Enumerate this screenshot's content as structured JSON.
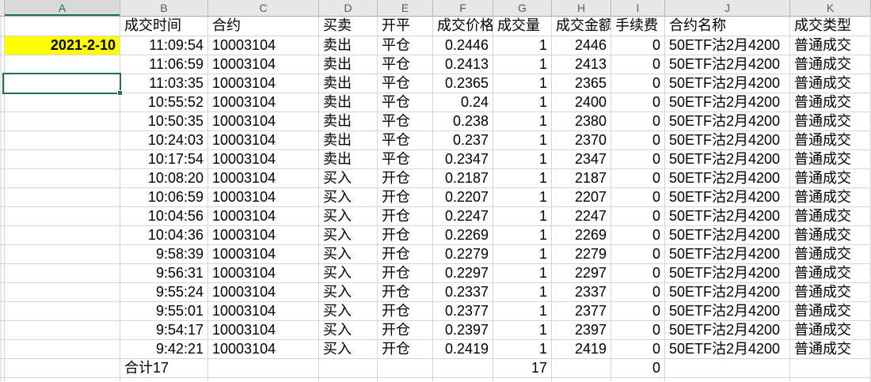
{
  "app": {
    "type": "excel-worksheet"
  },
  "columns": {
    "letters": [
      "A",
      "B",
      "C",
      "D",
      "E",
      "F",
      "G",
      "H",
      "I",
      "J",
      "K"
    ],
    "selected_letter": "A"
  },
  "sheet": {
    "header_row": [
      "成交时间",
      "合约",
      "买卖",
      "开平",
      "成交价格",
      "成交量",
      "成交金额",
      "手续费",
      "合约名称",
      "成交类型"
    ],
    "date_cell": "2021-2-10",
    "rows": [
      [
        "11:09:54",
        "10003104",
        "卖出",
        "平仓",
        "0.2446",
        "1",
        "2446",
        "0",
        "50ETF沽2月4200",
        "普通成交"
      ],
      [
        "11:06:59",
        "10003104",
        "卖出",
        "平仓",
        "0.2413",
        "1",
        "2413",
        "0",
        "50ETF沽2月4200",
        "普通成交"
      ],
      [
        "11:03:35",
        "10003104",
        "卖出",
        "平仓",
        "0.2365",
        "1",
        "2365",
        "0",
        "50ETF沽2月4200",
        "普通成交"
      ],
      [
        "10:55:52",
        "10003104",
        "卖出",
        "平仓",
        "0.24",
        "1",
        "2400",
        "0",
        "50ETF沽2月4200",
        "普通成交"
      ],
      [
        "10:50:35",
        "10003104",
        "卖出",
        "平仓",
        "0.238",
        "1",
        "2380",
        "0",
        "50ETF沽2月4200",
        "普通成交"
      ],
      [
        "10:24:03",
        "10003104",
        "卖出",
        "平仓",
        "0.237",
        "1",
        "2370",
        "0",
        "50ETF沽2月4200",
        "普通成交"
      ],
      [
        "10:17:54",
        "10003104",
        "卖出",
        "平仓",
        "0.2347",
        "1",
        "2347",
        "0",
        "50ETF沽2月4200",
        "普通成交"
      ],
      [
        "10:08:20",
        "10003104",
        "买入",
        "开仓",
        "0.2187",
        "1",
        "2187",
        "0",
        "50ETF沽2月4200",
        "普通成交"
      ],
      [
        "10:06:59",
        "10003104",
        "买入",
        "开仓",
        "0.2207",
        "1",
        "2207",
        "0",
        "50ETF沽2月4200",
        "普通成交"
      ],
      [
        "10:04:56",
        "10003104",
        "买入",
        "开仓",
        "0.2247",
        "1",
        "2247",
        "0",
        "50ETF沽2月4200",
        "普通成交"
      ],
      [
        "10:04:36",
        "10003104",
        "买入",
        "开仓",
        "0.2269",
        "1",
        "2269",
        "0",
        "50ETF沽2月4200",
        "普通成交"
      ],
      [
        "9:58:39",
        "10003104",
        "买入",
        "开仓",
        "0.2279",
        "1",
        "2279",
        "0",
        "50ETF沽2月4200",
        "普通成交"
      ],
      [
        "9:56:31",
        "10003104",
        "买入",
        "开仓",
        "0.2297",
        "1",
        "2297",
        "0",
        "50ETF沽2月4200",
        "普通成交"
      ],
      [
        "9:55:24",
        "10003104",
        "买入",
        "开仓",
        "0.2337",
        "1",
        "2337",
        "0",
        "50ETF沽2月4200",
        "普通成交"
      ],
      [
        "9:55:01",
        "10003104",
        "买入",
        "开仓",
        "0.2377",
        "1",
        "2377",
        "0",
        "50ETF沽2月4200",
        "普通成交"
      ],
      [
        "9:54:17",
        "10003104",
        "买入",
        "开仓",
        "0.2397",
        "1",
        "2397",
        "0",
        "50ETF沽2月4200",
        "普通成交"
      ],
      [
        "9:42:21",
        "10003104",
        "买入",
        "开仓",
        "0.2419",
        "1",
        "2419",
        "0",
        "50ETF沽2月4200",
        "普通成交"
      ]
    ],
    "total_row": {
      "label": "合计17",
      "volume": "17",
      "fee": "0"
    }
  },
  "colors": {
    "selection_green": "#217346",
    "highlight_yellow": "#FFFF00",
    "header_bg": "#E7E7E7",
    "selected_header_bg": "#D9D9D9",
    "gridline": "#D5D5D5"
  }
}
